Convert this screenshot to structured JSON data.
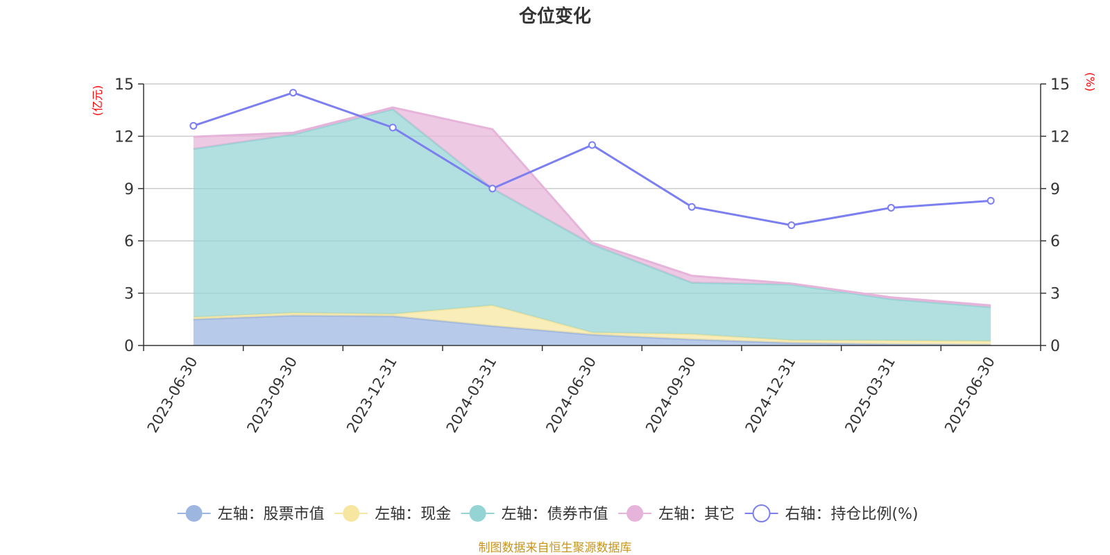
{
  "chart_data": {
    "type": "area",
    "title": "仓位变化",
    "left_axis_unit": "(亿元)",
    "right_axis_unit": "(%)",
    "categories": [
      "2023-06-30",
      "2023-09-30",
      "2023-12-31",
      "2024-03-31",
      "2024-06-30",
      "2024-09-30",
      "2024-12-31",
      "2025-03-31",
      "2025-06-30"
    ],
    "ylim": [
      0,
      15
    ],
    "y_ticks": [
      0,
      3,
      6,
      9,
      12,
      15
    ],
    "y2lim": [
      0,
      15
    ],
    "y2_ticks": [
      0,
      3,
      6,
      9,
      12,
      15
    ],
    "stacked": true,
    "series": [
      {
        "name": "左轴：股票市值",
        "axis": "left",
        "color": "#9db6e0",
        "values": [
          1.5,
          1.72,
          1.68,
          1.12,
          0.62,
          0.35,
          0.15,
          0.08,
          0.05
        ]
      },
      {
        "name": "左轴：现金",
        "axis": "left",
        "color": "#f7e6a0",
        "values": [
          0.12,
          0.15,
          0.12,
          1.18,
          0.12,
          0.3,
          0.15,
          0.2,
          0.2
        ]
      },
      {
        "name": "左轴：债券市值",
        "axis": "left",
        "color": "#94d4d4",
        "values": [
          9.65,
          10.23,
          11.75,
          6.7,
          5.06,
          2.95,
          3.2,
          2.38,
          1.95
        ]
      },
      {
        "name": "左轴：其它",
        "axis": "left",
        "color": "#e6b4da",
        "values": [
          0.7,
          0.1,
          0.1,
          3.4,
          0.1,
          0.4,
          0.05,
          0.1,
          0.1
        ]
      }
    ],
    "line_series": {
      "name": "右轴：持仓比例(%)",
      "axis": "right",
      "color": "#7b7ff0",
      "values": [
        12.6,
        14.5,
        12.5,
        9.0,
        11.5,
        7.95,
        6.9,
        7.9,
        8.3
      ]
    },
    "grid": true,
    "legend_position": "bottom"
  },
  "source_note": "制图数据来自恒生聚源数据库"
}
